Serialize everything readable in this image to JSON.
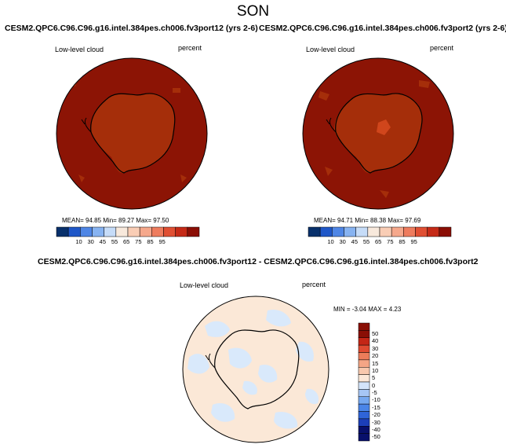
{
  "page_title": "SON",
  "colors": {
    "seq_scale": [
      "#08306b",
      "#1f57c8",
      "#4f86e5",
      "#87b3f1",
      "#c6dcf8",
      "#f8e9dc",
      "#f9cdb5",
      "#f5a88c",
      "#ee7c5e",
      "#e04f33",
      "#c52a17",
      "#8b0e05"
    ],
    "diff_scale": [
      "#08106b",
      "#1c3fb8",
      "#2f64d8",
      "#4a85e8",
      "#76a8f0",
      "#a6c6f5",
      "#d4e5fb",
      "#fbe7d7",
      "#f8c8ad",
      "#f4a585",
      "#ec7c5a",
      "#df4a31",
      "#c42616",
      "#8a0f05"
    ],
    "cloud_fill_main": "#8c1405",
    "cloud_fill_antarctica": "#a52e0a",
    "diff_fill_pos": "#fbe8d7",
    "diff_fill_neg": "#d9e9fb"
  },
  "panels": [
    {
      "title": "CESM2.QPC6.C96.C96.g16.intel.384pes.ch006.fv3port12 (yrs 2-6)",
      "left_label": "Low-level cloud",
      "right_label": "percent",
      "stats": "MEAN=  94.85   Min=  89.27   Max=  97.50",
      "colorbar_labels": [
        "10",
        "30",
        "45",
        "55",
        "65",
        "75",
        "85",
        "95"
      ]
    },
    {
      "title": "CESM2.QPC6.C96.C96.g16.intel.384pes.ch006.fv3port2 (yrs 2-6)",
      "left_label": "Low-level cloud",
      "right_label": "percent",
      "stats": "MEAN=  94.71   Min=  88.38   Max=  97.69",
      "colorbar_labels": [
        "10",
        "30",
        "45",
        "55",
        "65",
        "75",
        "85",
        "95"
      ]
    }
  ],
  "diff_panel": {
    "title": "CESM2.QPC6.C96.C96.g16.intel.384pes.ch006.fv3port12 - CESM2.QPC6.C96.C96.g16.intel.384pes.ch006.fv3port2",
    "left_label": "Low-level cloud",
    "right_label": "percent",
    "minmax": "MIN =  -3.04  MAX =   4.23",
    "colorbar_labels": [
      "50",
      "40",
      "30",
      "20",
      "15",
      "10",
      "5",
      "0",
      "-5",
      "-10",
      "-15",
      "-20",
      "-30",
      "-40",
      "-50"
    ]
  }
}
